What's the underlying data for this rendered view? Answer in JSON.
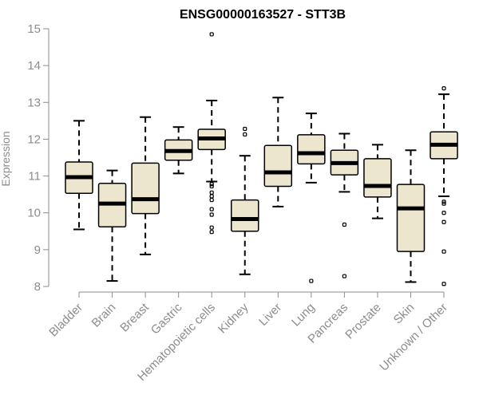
{
  "chart_data": {
    "type": "boxplot",
    "title": "ENSG00000163527 - STT3B",
    "xlabel": "",
    "ylabel": "Expression",
    "ylim": [
      8,
      15
    ],
    "yticks": [
      8,
      9,
      10,
      11,
      12,
      13,
      14,
      15
    ],
    "grid": false,
    "categories": [
      "Bladder",
      "Brain",
      "Breast",
      "Gastric",
      "Hematopoietic cells",
      "Kidney",
      "Liver",
      "Lung",
      "Pancreas",
      "Prostate",
      "Skin",
      "Unknown / Other"
    ],
    "series": [
      {
        "name": "Bladder",
        "whisker_low": 9.55,
        "q1": 10.53,
        "median": 10.97,
        "q3": 11.38,
        "whisker_high": 12.5,
        "outliers": []
      },
      {
        "name": "Brain",
        "whisker_low": 8.15,
        "q1": 9.62,
        "median": 10.25,
        "q3": 10.8,
        "whisker_high": 11.15,
        "outliers": []
      },
      {
        "name": "Breast",
        "whisker_low": 8.87,
        "q1": 9.98,
        "median": 10.37,
        "q3": 11.35,
        "whisker_high": 12.6,
        "outliers": []
      },
      {
        "name": "Gastric",
        "whisker_low": 11.07,
        "q1": 11.43,
        "median": 11.68,
        "q3": 11.98,
        "whisker_high": 12.33,
        "outliers": []
      },
      {
        "name": "Hematopoietic cells",
        "whisker_low": 10.85,
        "q1": 11.72,
        "median": 12.02,
        "q3": 12.27,
        "whisker_high": 13.05,
        "outliers": [
          14.85,
          10.78,
          10.72,
          10.55,
          10.45,
          10.35,
          10.1,
          9.95,
          9.6,
          9.48
        ]
      },
      {
        "name": "Kidney",
        "whisker_low": 8.33,
        "q1": 9.5,
        "median": 9.83,
        "q3": 10.35,
        "whisker_high": 11.55,
        "outliers": [
          12.28,
          12.13
        ]
      },
      {
        "name": "Liver",
        "whisker_low": 10.17,
        "q1": 10.72,
        "median": 11.1,
        "q3": 11.83,
        "whisker_high": 13.13,
        "outliers": []
      },
      {
        "name": "Lung",
        "whisker_low": 10.82,
        "q1": 11.33,
        "median": 11.62,
        "q3": 12.12,
        "whisker_high": 12.7,
        "outliers": [
          8.15
        ]
      },
      {
        "name": "Pancreas",
        "whisker_low": 10.57,
        "q1": 11.03,
        "median": 11.35,
        "q3": 11.7,
        "whisker_high": 12.15,
        "outliers": [
          9.68,
          8.28
        ]
      },
      {
        "name": "Prostate",
        "whisker_low": 9.85,
        "q1": 10.43,
        "median": 10.73,
        "q3": 11.47,
        "whisker_high": 11.85,
        "outliers": []
      },
      {
        "name": "Skin",
        "whisker_low": 8.12,
        "q1": 8.95,
        "median": 10.12,
        "q3": 10.77,
        "whisker_high": 11.7,
        "outliers": []
      },
      {
        "name": "Unknown / Other",
        "whisker_low": 10.45,
        "q1": 11.47,
        "median": 11.85,
        "q3": 12.2,
        "whisker_high": 13.22,
        "outliers": [
          13.38,
          10.3,
          10.25,
          10.0,
          9.75,
          8.95,
          8.07
        ]
      }
    ]
  }
}
